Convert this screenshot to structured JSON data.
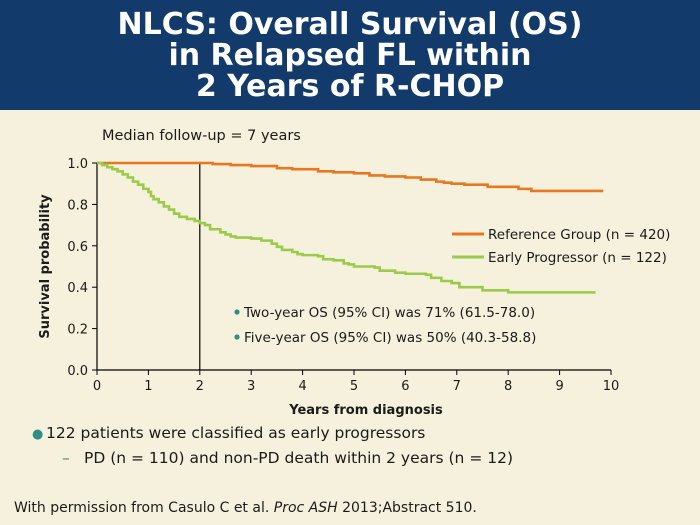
{
  "title": {
    "line1": "NLCS: Overall Survival (OS)",
    "line2": "in Relapsed FL within",
    "line3": "2 Years of R-CHOP"
  },
  "chart_data": {
    "type": "line",
    "title": "",
    "subtitle": "Median follow-up = 7 years",
    "xlabel": "Years from diagnosis",
    "ylabel": "Survival probability",
    "xlim": [
      0,
      10
    ],
    "ylim": [
      0,
      1.0
    ],
    "x_ticks": [
      "0",
      "1",
      "2",
      "3",
      "4",
      "5",
      "6",
      "7",
      "8",
      "9",
      "10"
    ],
    "y_ticks": [
      "0.0",
      "0.2",
      "0.4",
      "0.6",
      "0.8",
      "1.0"
    ],
    "grid": false,
    "legend_position": "right",
    "step": true,
    "reference_line_x": 2,
    "series": [
      {
        "name": "Reference Group (n = 420)",
        "color": "#e87722",
        "points": [
          [
            0,
            1.0
          ],
          [
            2.2,
            1.0
          ],
          [
            2.25,
            0.995
          ],
          [
            2.6,
            0.99
          ],
          [
            3.0,
            0.985
          ],
          [
            3.5,
            0.975
          ],
          [
            3.8,
            0.97
          ],
          [
            4.3,
            0.96
          ],
          [
            4.6,
            0.955
          ],
          [
            5.0,
            0.95
          ],
          [
            5.3,
            0.94
          ],
          [
            5.6,
            0.935
          ],
          [
            6.0,
            0.93
          ],
          [
            6.3,
            0.92
          ],
          [
            6.6,
            0.91
          ],
          [
            6.75,
            0.905
          ],
          [
            6.9,
            0.9
          ],
          [
            7.15,
            0.895
          ],
          [
            7.6,
            0.885
          ],
          [
            8.2,
            0.875
          ],
          [
            8.45,
            0.865
          ],
          [
            9.85,
            0.865
          ]
        ]
      },
      {
        "name": "Early Progressor (n = 122)",
        "color": "#9bcb4a",
        "points": [
          [
            0,
            1.0
          ],
          [
            0.1,
            0.99
          ],
          [
            0.2,
            0.98
          ],
          [
            0.3,
            0.97
          ],
          [
            0.4,
            0.96
          ],
          [
            0.5,
            0.945
          ],
          [
            0.6,
            0.93
          ],
          [
            0.7,
            0.91
          ],
          [
            0.8,
            0.895
          ],
          [
            0.9,
            0.875
          ],
          [
            1.0,
            0.86
          ],
          [
            1.05,
            0.84
          ],
          [
            1.1,
            0.825
          ],
          [
            1.2,
            0.81
          ],
          [
            1.3,
            0.79
          ],
          [
            1.4,
            0.775
          ],
          [
            1.5,
            0.755
          ],
          [
            1.6,
            0.74
          ],
          [
            1.75,
            0.73
          ],
          [
            1.9,
            0.72
          ],
          [
            2.0,
            0.71
          ],
          [
            2.1,
            0.7
          ],
          [
            2.2,
            0.68
          ],
          [
            2.4,
            0.665
          ],
          [
            2.5,
            0.655
          ],
          [
            2.6,
            0.645
          ],
          [
            2.7,
            0.64
          ],
          [
            3.0,
            0.635
          ],
          [
            3.2,
            0.625
          ],
          [
            3.4,
            0.61
          ],
          [
            3.5,
            0.595
          ],
          [
            3.6,
            0.58
          ],
          [
            3.8,
            0.57
          ],
          [
            3.9,
            0.56
          ],
          [
            4.0,
            0.555
          ],
          [
            4.3,
            0.55
          ],
          [
            4.4,
            0.535
          ],
          [
            4.6,
            0.53
          ],
          [
            4.8,
            0.515
          ],
          [
            4.9,
            0.51
          ],
          [
            5.0,
            0.5
          ],
          [
            5.4,
            0.495
          ],
          [
            5.5,
            0.48
          ],
          [
            5.8,
            0.47
          ],
          [
            6.0,
            0.465
          ],
          [
            6.4,
            0.46
          ],
          [
            6.5,
            0.445
          ],
          [
            6.7,
            0.43
          ],
          [
            6.9,
            0.42
          ],
          [
            7.05,
            0.4
          ],
          [
            7.5,
            0.385
          ],
          [
            8.0,
            0.375
          ],
          [
            9.7,
            0.375
          ]
        ]
      }
    ],
    "annotations": [
      "Two-year OS (95% CI) was 71% (61.5-78.0)",
      "Five-year OS (95% CI) was 50% (40.3-58.8)"
    ]
  },
  "bullets": {
    "main": "122 patients were classified as early progressors",
    "sub": "PD (n = 110) and non-PD death within 2 years (n = 12)"
  },
  "citation": {
    "prefix": "With permission from Casulo C et al. ",
    "journal": "Proc ASH",
    "suffix": " 2013;Abstract 510."
  }
}
